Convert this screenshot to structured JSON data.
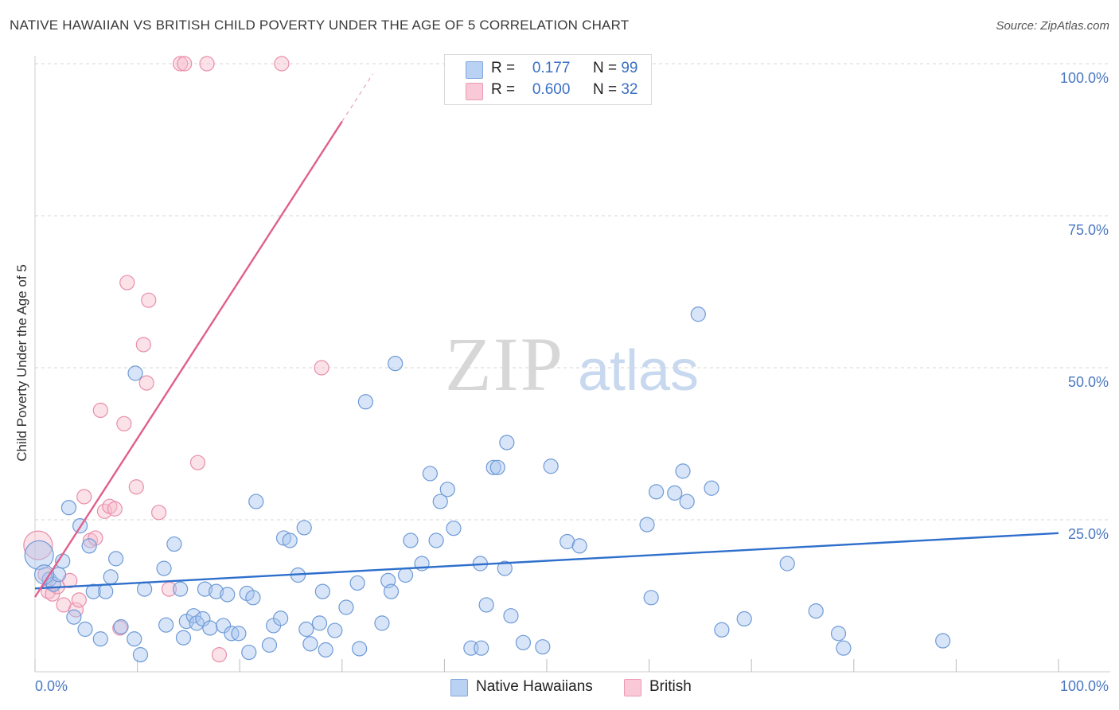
{
  "title": "NATIVE HAWAIIAN VS BRITISH CHILD POVERTY UNDER THE AGE OF 5 CORRELATION CHART",
  "source": "Source: ZipAtlas.com",
  "watermark": {
    "zip": "ZIP",
    "atlas": "atlas"
  },
  "colors": {
    "blue_fill": "#a9c6ef",
    "blue_stroke": "#6e9ad6",
    "blue_line": "#2e6fcc",
    "pink_fill": "#f6bccd",
    "pink_stroke": "#e98eab",
    "pink_line": "#e0608c",
    "tick_text": "#4a78c2",
    "grid": "#d6d6d6"
  },
  "legend": {
    "r_label": "R =",
    "n_label": "N =",
    "series": [
      {
        "name": "Native Hawaiians",
        "r": "0.177",
        "n": "99"
      },
      {
        "name": "British",
        "r": "0.600",
        "n": "32"
      }
    ]
  },
  "chart_data": {
    "type": "scatter",
    "title": "NATIVE HAWAIIAN VS BRITISH CHILD POVERTY UNDER THE AGE OF 5 CORRELATION CHART",
    "xlabel": "",
    "ylabel": "Child Poverty Under the Age of 5",
    "xlim": [
      0,
      100
    ],
    "ylim": [
      0,
      100
    ],
    "x_tick_labels": [
      "0.0%",
      "100.0%"
    ],
    "y_ticks": [
      25,
      50,
      75,
      100
    ],
    "y_tick_labels": [
      "25.0%",
      "50.0%",
      "75.0%",
      "100.0%"
    ],
    "grid": true,
    "series": [
      {
        "name": "Native Hawaiians",
        "trend": {
          "x0": 0,
          "y0": 13.7,
          "x1": 100,
          "y1": 22.8
        },
        "points": [
          [
            0.4,
            19.2,
            3
          ],
          [
            1.4,
            15.2,
            1
          ],
          [
            1.8,
            14.4,
            1
          ],
          [
            2.3,
            16.0,
            1
          ],
          [
            2.7,
            18.2,
            1
          ],
          [
            3.3,
            27.0,
            1
          ],
          [
            3.8,
            9.0,
            1
          ],
          [
            4.4,
            24.0,
            1
          ],
          [
            4.9,
            7.0,
            1
          ],
          [
            5.3,
            20.7,
            1
          ],
          [
            5.7,
            13.2,
            1
          ],
          [
            6.4,
            5.4,
            1
          ],
          [
            6.9,
            13.2,
            1
          ],
          [
            7.4,
            15.6,
            1
          ],
          [
            7.9,
            18.6,
            1
          ],
          [
            8.4,
            7.4,
            1
          ],
          [
            9.7,
            5.4,
            1
          ],
          [
            9.8,
            49.1,
            1
          ],
          [
            10.3,
            2.8,
            1
          ],
          [
            10.7,
            13.6,
            1
          ],
          [
            12.6,
            17.0,
            1
          ],
          [
            12.8,
            7.7,
            1
          ],
          [
            13.6,
            21.0,
            1
          ],
          [
            14.2,
            13.6,
            1
          ],
          [
            14.5,
            5.6,
            1
          ],
          [
            14.8,
            8.3,
            1
          ],
          [
            15.5,
            9.2,
            1
          ],
          [
            15.8,
            8.0,
            1
          ],
          [
            16.4,
            8.7,
            1
          ],
          [
            16.6,
            13.6,
            1
          ],
          [
            17.1,
            7.2,
            1
          ],
          [
            17.7,
            13.2,
            1
          ],
          [
            18.4,
            7.6,
            1
          ],
          [
            18.8,
            12.7,
            1
          ],
          [
            19.2,
            6.3,
            1
          ],
          [
            19.9,
            6.3,
            1
          ],
          [
            20.7,
            12.9,
            1
          ],
          [
            20.9,
            3.2,
            1
          ],
          [
            21.3,
            12.2,
            1
          ],
          [
            21.6,
            28.0,
            1
          ],
          [
            22.9,
            4.4,
            1
          ],
          [
            23.3,
            7.6,
            1
          ],
          [
            24.0,
            8.8,
            1
          ],
          [
            24.3,
            22.0,
            1
          ],
          [
            24.9,
            21.6,
            1
          ],
          [
            25.7,
            15.9,
            1
          ],
          [
            26.3,
            23.7,
            1
          ],
          [
            26.5,
            7.0,
            1
          ],
          [
            26.9,
            4.6,
            1
          ],
          [
            27.8,
            8.0,
            1
          ],
          [
            28.1,
            13.2,
            1
          ],
          [
            28.4,
            3.6,
            1
          ],
          [
            29.3,
            6.8,
            1
          ],
          [
            30.4,
            10.6,
            1
          ],
          [
            31.5,
            14.6,
            1
          ],
          [
            31.7,
            3.8,
            1
          ],
          [
            32.3,
            44.4,
            1
          ],
          [
            33.9,
            8.0,
            1
          ],
          [
            34.5,
            15.0,
            1
          ],
          [
            34.8,
            13.2,
            1
          ],
          [
            35.2,
            50.7,
            1
          ],
          [
            36.2,
            15.9,
            1
          ],
          [
            36.7,
            21.6,
            1
          ],
          [
            37.8,
            17.8,
            1
          ],
          [
            38.6,
            32.6,
            1
          ],
          [
            39.2,
            21.6,
            1
          ],
          [
            39.6,
            28.0,
            1
          ],
          [
            40.3,
            30.0,
            1
          ],
          [
            40.9,
            23.6,
            1
          ],
          [
            42.6,
            3.9,
            1
          ],
          [
            43.5,
            17.8,
            1
          ],
          [
            43.6,
            3.9,
            1
          ],
          [
            44.1,
            11.0,
            1
          ],
          [
            44.8,
            33.6,
            1
          ],
          [
            45.2,
            33.6,
            1
          ],
          [
            45.9,
            17.0,
            1
          ],
          [
            46.1,
            37.7,
            1
          ],
          [
            46.5,
            9.2,
            1
          ],
          [
            47.7,
            4.8,
            1
          ],
          [
            49.6,
            4.1,
            1
          ],
          [
            50.4,
            33.8,
            1
          ],
          [
            52.0,
            21.4,
            1
          ],
          [
            53.2,
            20.7,
            1
          ],
          [
            59.8,
            24.2,
            1
          ],
          [
            60.2,
            12.2,
            1
          ],
          [
            60.7,
            29.6,
            1
          ],
          [
            62.5,
            29.4,
            1
          ],
          [
            63.3,
            33.0,
            1
          ],
          [
            63.7,
            28.0,
            1
          ],
          [
            64.8,
            58.8,
            1
          ],
          [
            66.1,
            30.2,
            1
          ],
          [
            67.1,
            6.9,
            1
          ],
          [
            69.3,
            8.7,
            1
          ],
          [
            73.5,
            17.8,
            1
          ],
          [
            76.3,
            10.0,
            1
          ],
          [
            78.5,
            6.3,
            1
          ],
          [
            79.0,
            3.9,
            1
          ],
          [
            88.7,
            5.1,
            1
          ],
          [
            0.9,
            16.0,
            2
          ]
        ]
      },
      {
        "name": "British",
        "trend": {
          "x0": 0,
          "y0": 12.3,
          "x1": 30.0,
          "y1": 90.5,
          "dash_to_x": 33.0
        },
        "points": [
          [
            0.3,
            20.8,
            3
          ],
          [
            1.0,
            16.0,
            1
          ],
          [
            1.3,
            13.2,
            1
          ],
          [
            1.7,
            12.8,
            1
          ],
          [
            2.2,
            14.0,
            1
          ],
          [
            2.8,
            11.0,
            1
          ],
          [
            3.4,
            15.0,
            1
          ],
          [
            4.0,
            10.2,
            1
          ],
          [
            4.3,
            11.8,
            1
          ],
          [
            4.8,
            28.8,
            1
          ],
          [
            5.4,
            21.6,
            1
          ],
          [
            5.9,
            22.0,
            1
          ],
          [
            6.4,
            43.0,
            1
          ],
          [
            6.8,
            26.4,
            1
          ],
          [
            7.3,
            27.2,
            1
          ],
          [
            7.8,
            26.8,
            1
          ],
          [
            8.3,
            7.2,
            1
          ],
          [
            8.7,
            40.8,
            1
          ],
          [
            9.0,
            64.0,
            1
          ],
          [
            9.9,
            30.4,
            1
          ],
          [
            10.6,
            53.8,
            1
          ],
          [
            10.9,
            47.5,
            1
          ],
          [
            11.1,
            61.1,
            1
          ],
          [
            12.1,
            26.2,
            1
          ],
          [
            13.1,
            13.6,
            1
          ],
          [
            14.2,
            100.0,
            1
          ],
          [
            14.6,
            100.0,
            1
          ],
          [
            15.9,
            34.4,
            1
          ],
          [
            16.8,
            100.0,
            1
          ],
          [
            18.0,
            2.8,
            1
          ],
          [
            24.1,
            100.0,
            1
          ],
          [
            28.0,
            50.0,
            1
          ]
        ]
      }
    ]
  }
}
